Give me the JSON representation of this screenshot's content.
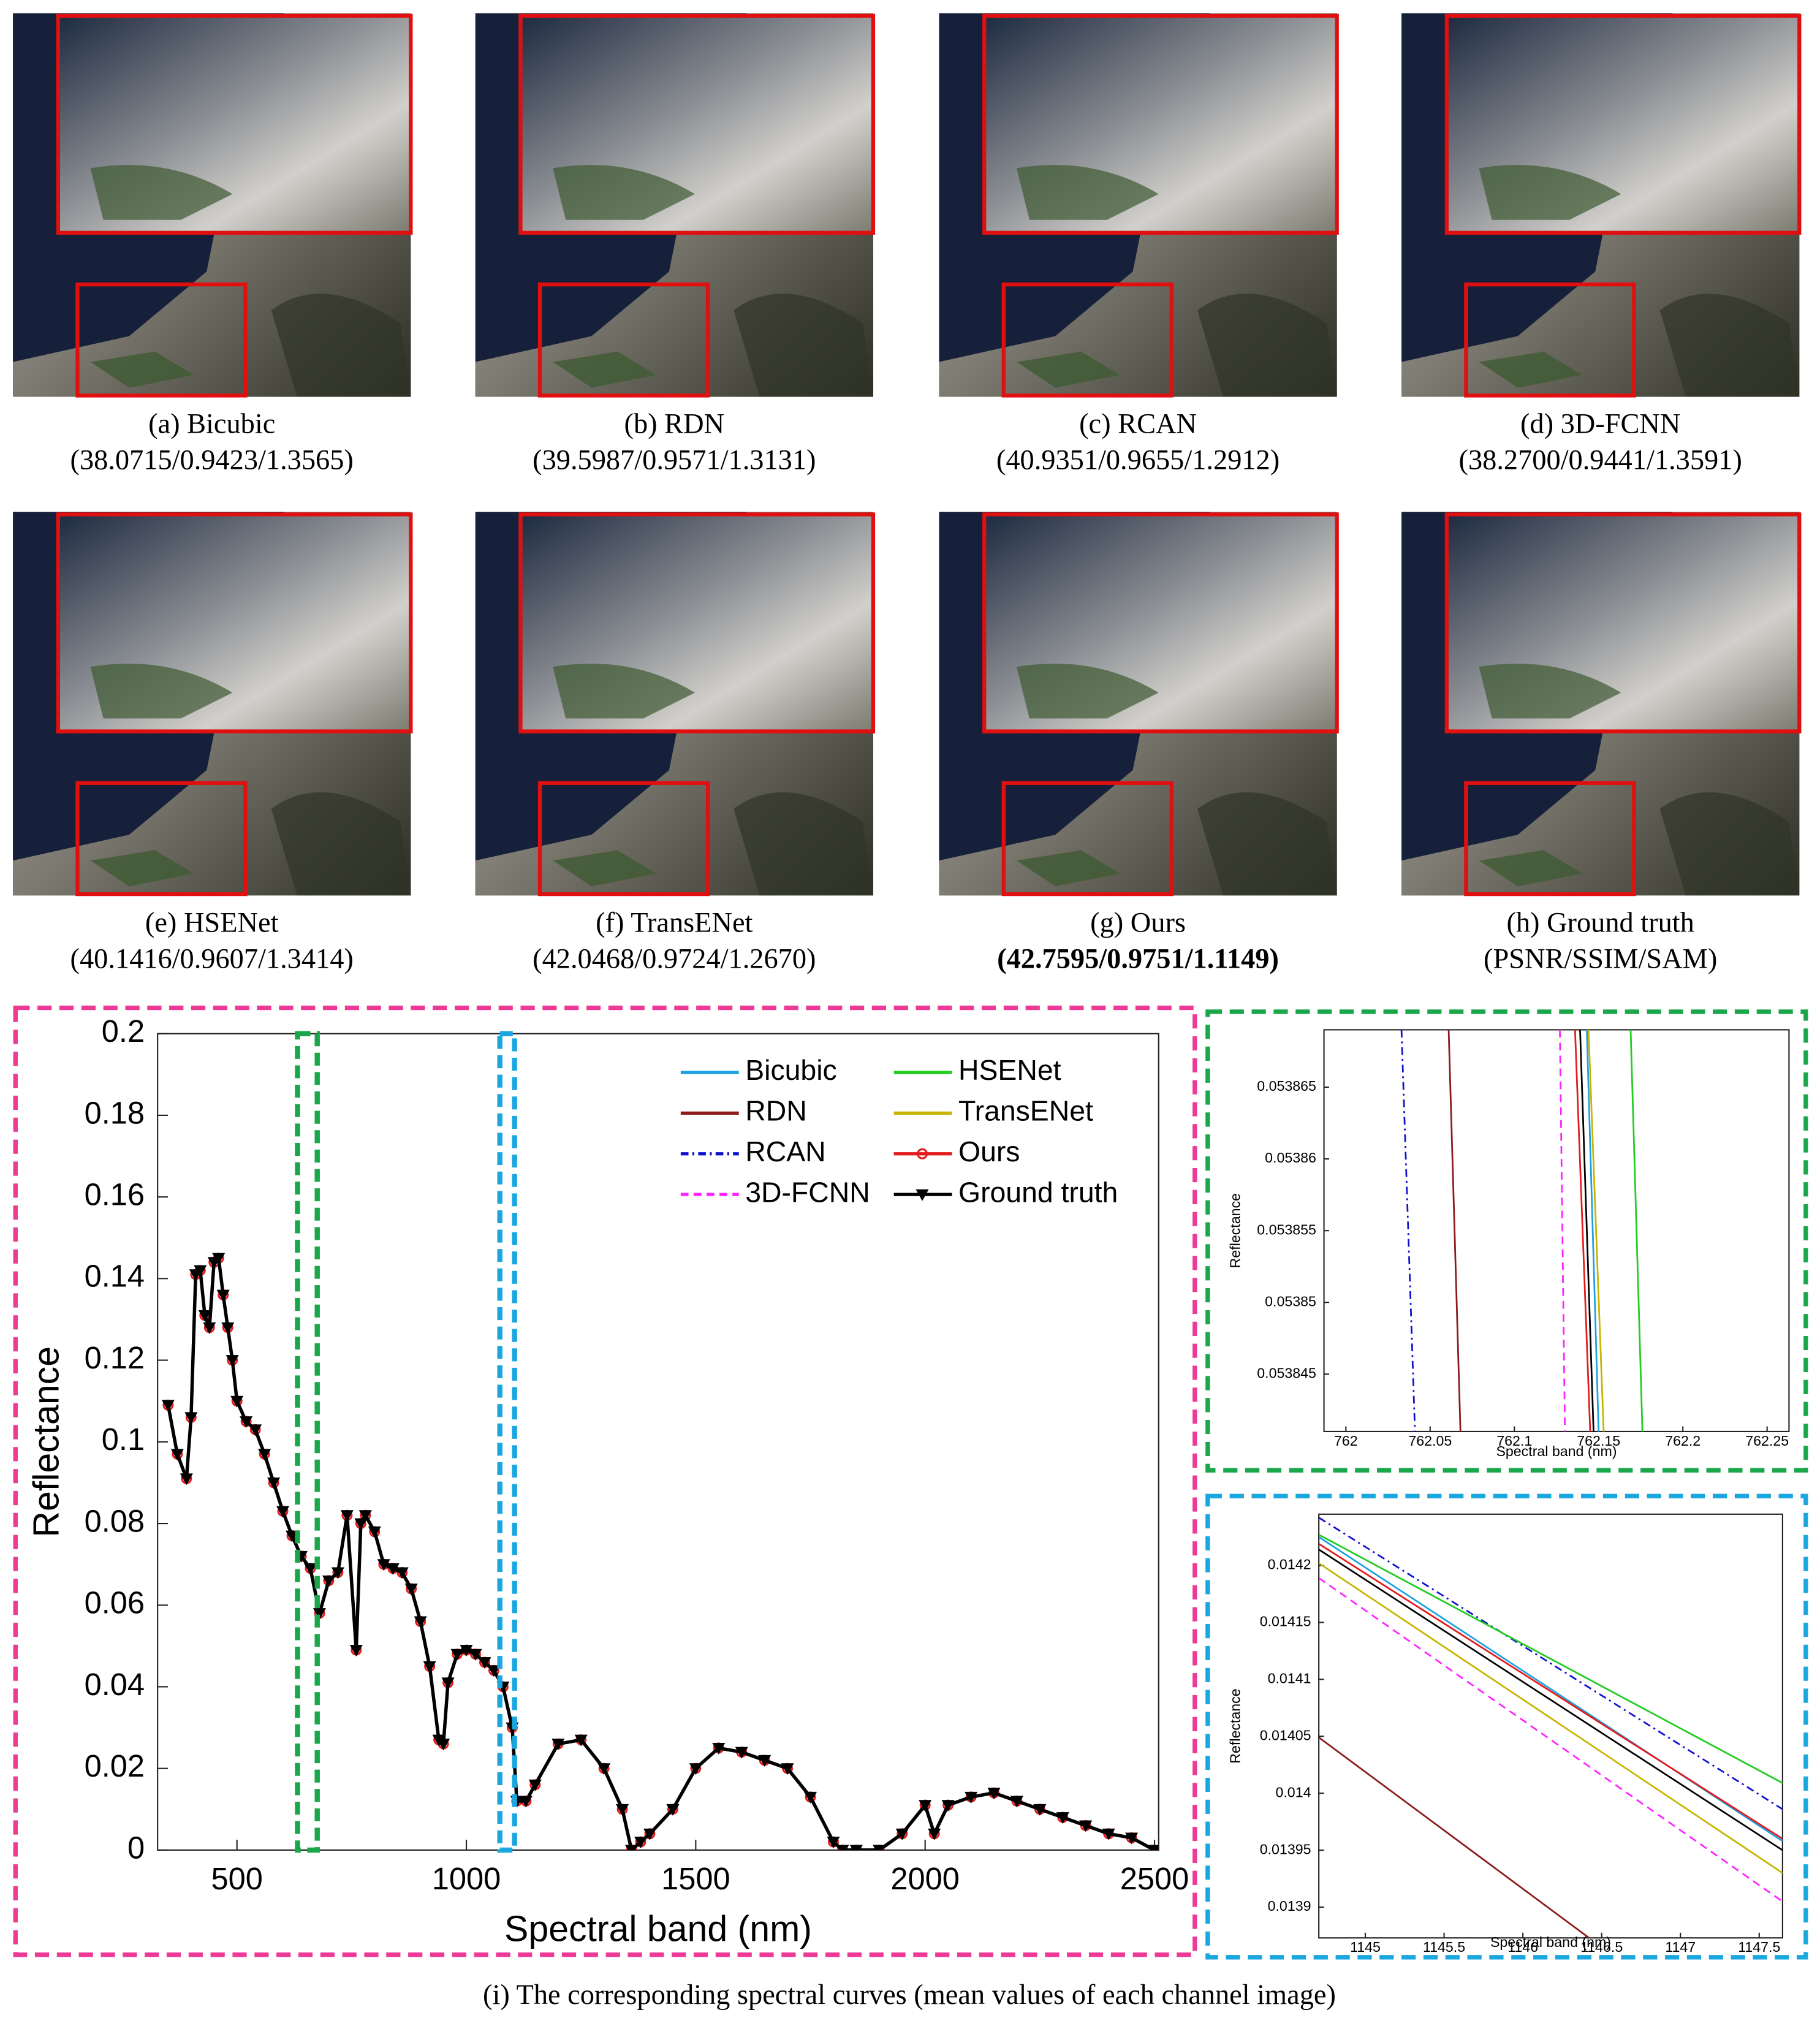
{
  "panels": [
    {
      "label": "(a) Bicubic",
      "metrics": "(38.0715/0.9423/1.3565)"
    },
    {
      "label": "(b) RDN",
      "metrics": "(39.5987/0.9571/1.3131)"
    },
    {
      "label": "(c) RCAN",
      "metrics": "(40.9351/0.9655/1.2912)"
    },
    {
      "label": "(d) 3D-FCNN",
      "metrics": "(38.2700/0.9441/1.3591)"
    },
    {
      "label": "(e) HSENet",
      "metrics": "(40.1416/0.9607/1.3414)"
    },
    {
      "label": "(f) TransENet",
      "metrics": "(42.0468/0.9724/1.2670)"
    },
    {
      "label": "(g) Ours",
      "metrics": "(42.7595/0.9751/1.1149)",
      "bold": true
    },
    {
      "label": "(h) Ground truth",
      "metrics": "(PSNR/SSIM/SAM)"
    }
  ],
  "chart_data": [
    {
      "type": "line",
      "xlabel": "Spectral band (nm)",
      "ylabel": "Reflectance",
      "legend": "upper right",
      "xlim": [
        327,
        2509
      ],
      "xticks": [
        500,
        1000,
        1500,
        2000,
        2500
      ],
      "ylim": [
        0,
        0.2
      ],
      "yticks": [
        0,
        0.02,
        0.04,
        0.06,
        0.08,
        0.1,
        0.12,
        0.14,
        0.16,
        0.18,
        0.2
      ],
      "regions": [
        {
          "xlim": [
            632,
            675
          ],
          "color": "#1aa64a"
        },
        {
          "xlim": [
            1073,
            1105
          ],
          "color": "#1aa7e0"
        }
      ],
      "x": [
        350,
        370,
        390,
        400,
        410,
        420,
        430,
        440,
        450,
        460,
        470,
        480,
        490,
        500,
        520,
        540,
        560,
        580,
        600,
        620,
        640,
        660,
        680,
        700,
        720,
        740,
        760,
        770,
        780,
        800,
        820,
        840,
        860,
        880,
        900,
        920,
        940,
        950,
        960,
        980,
        1000,
        1020,
        1040,
        1060,
        1080,
        1100,
        1110,
        1130,
        1150,
        1200,
        1250,
        1300,
        1340,
        1360,
        1380,
        1400,
        1450,
        1500,
        1550,
        1600,
        1650,
        1700,
        1750,
        1800,
        1820,
        1850,
        1900,
        1950,
        2000,
        2020,
        2050,
        2100,
        2150,
        2200,
        2250,
        2300,
        2350,
        2400,
        2450,
        2500
      ],
      "series": [
        {
          "name": "Bicubic",
          "color": "#1ba1e2",
          "values": [
            0.109,
            0.097,
            0.091,
            0.106,
            0.141,
            0.142,
            0.131,
            0.128,
            0.144,
            0.145,
            0.136,
            0.128,
            0.12,
            0.11,
            0.105,
            0.103,
            0.097,
            0.09,
            0.083,
            0.077,
            0.072,
            0.069,
            0.058,
            0.066,
            0.068,
            0.082,
            0.049,
            0.08,
            0.082,
            0.078,
            0.07,
            0.069,
            0.068,
            0.064,
            0.056,
            0.045,
            0.027,
            0.026,
            0.041,
            0.048,
            0.049,
            0.048,
            0.046,
            0.044,
            0.04,
            0.03,
            0.012,
            0.012,
            0.016,
            0.026,
            0.027,
            0.02,
            0.01,
            0,
            0.002,
            0.004,
            0.01,
            0.02,
            0.025,
            0.024,
            0.022,
            0.02,
            0.013,
            0.002,
            0,
            0,
            0,
            0.004,
            0.011,
            0.004,
            0.011,
            0.013,
            0.014,
            0.012,
            0.01,
            0.008,
            0.006,
            0.004,
            0.003,
            0
          ]
        },
        {
          "name": "RDN",
          "color": "#8b1a1a",
          "values": [
            0.109,
            0.097,
            0.091,
            0.106,
            0.141,
            0.142,
            0.131,
            0.128,
            0.144,
            0.145,
            0.136,
            0.128,
            0.12,
            0.11,
            0.105,
            0.103,
            0.097,
            0.09,
            0.083,
            0.077,
            0.072,
            0.069,
            0.058,
            0.066,
            0.068,
            0.082,
            0.049,
            0.08,
            0.082,
            0.078,
            0.07,
            0.069,
            0.068,
            0.064,
            0.056,
            0.045,
            0.027,
            0.026,
            0.041,
            0.048,
            0.049,
            0.048,
            0.046,
            0.044,
            0.04,
            0.03,
            0.012,
            0.012,
            0.016,
            0.026,
            0.027,
            0.02,
            0.01,
            0,
            0.002,
            0.004,
            0.01,
            0.02,
            0.025,
            0.024,
            0.022,
            0.02,
            0.013,
            0.002,
            0,
            0,
            0,
            0.004,
            0.011,
            0.004,
            0.011,
            0.013,
            0.014,
            0.012,
            0.01,
            0.008,
            0.006,
            0.004,
            0.003,
            0
          ]
        },
        {
          "name": "RCAN",
          "color": "#1010d0",
          "line_style": "dashdot",
          "values": [
            0.109,
            0.097,
            0.091,
            0.106,
            0.141,
            0.142,
            0.131,
            0.128,
            0.144,
            0.145,
            0.136,
            0.128,
            0.12,
            0.11,
            0.105,
            0.103,
            0.097,
            0.09,
            0.083,
            0.077,
            0.072,
            0.069,
            0.058,
            0.066,
            0.068,
            0.082,
            0.049,
            0.08,
            0.082,
            0.078,
            0.07,
            0.069,
            0.068,
            0.064,
            0.056,
            0.045,
            0.027,
            0.026,
            0.041,
            0.048,
            0.049,
            0.048,
            0.046,
            0.044,
            0.04,
            0.03,
            0.012,
            0.012,
            0.016,
            0.026,
            0.027,
            0.02,
            0.01,
            0,
            0.002,
            0.004,
            0.01,
            0.02,
            0.025,
            0.024,
            0.022,
            0.02,
            0.013,
            0.002,
            0,
            0,
            0,
            0.004,
            0.011,
            0.004,
            0.011,
            0.013,
            0.014,
            0.012,
            0.01,
            0.008,
            0.006,
            0.004,
            0.003,
            0
          ]
        },
        {
          "name": "3D-FCNN",
          "color": "#ff22ff",
          "line_style": "dashed",
          "values": [
            0.109,
            0.097,
            0.091,
            0.106,
            0.141,
            0.142,
            0.131,
            0.128,
            0.144,
            0.145,
            0.136,
            0.128,
            0.12,
            0.11,
            0.105,
            0.103,
            0.097,
            0.09,
            0.083,
            0.077,
            0.072,
            0.069,
            0.058,
            0.066,
            0.068,
            0.082,
            0.049,
            0.08,
            0.082,
            0.078,
            0.07,
            0.069,
            0.068,
            0.064,
            0.056,
            0.045,
            0.027,
            0.026,
            0.041,
            0.048,
            0.049,
            0.048,
            0.046,
            0.044,
            0.04,
            0.03,
            0.012,
            0.012,
            0.016,
            0.026,
            0.027,
            0.02,
            0.01,
            0,
            0.002,
            0.004,
            0.01,
            0.02,
            0.025,
            0.024,
            0.022,
            0.02,
            0.013,
            0.002,
            0,
            0,
            0,
            0.004,
            0.011,
            0.004,
            0.011,
            0.013,
            0.014,
            0.012,
            0.01,
            0.008,
            0.006,
            0.004,
            0.003,
            0
          ]
        },
        {
          "name": "HSENet",
          "color": "#22cc22",
          "values": [
            0.109,
            0.097,
            0.091,
            0.106,
            0.141,
            0.142,
            0.131,
            0.128,
            0.144,
            0.145,
            0.136,
            0.128,
            0.12,
            0.11,
            0.105,
            0.103,
            0.097,
            0.09,
            0.083,
            0.077,
            0.072,
            0.069,
            0.058,
            0.066,
            0.068,
            0.082,
            0.049,
            0.08,
            0.082,
            0.078,
            0.07,
            0.069,
            0.068,
            0.064,
            0.056,
            0.045,
            0.027,
            0.026,
            0.041,
            0.048,
            0.049,
            0.048,
            0.046,
            0.044,
            0.04,
            0.03,
            0.012,
            0.012,
            0.016,
            0.026,
            0.027,
            0.02,
            0.01,
            0,
            0.002,
            0.004,
            0.01,
            0.02,
            0.025,
            0.024,
            0.022,
            0.02,
            0.013,
            0.002,
            0,
            0,
            0,
            0.004,
            0.011,
            0.004,
            0.011,
            0.013,
            0.014,
            0.012,
            0.01,
            0.008,
            0.006,
            0.004,
            0.003,
            0
          ]
        },
        {
          "name": "TransENet",
          "color": "#c8b400",
          "values": [
            0.109,
            0.097,
            0.091,
            0.106,
            0.141,
            0.142,
            0.131,
            0.128,
            0.144,
            0.145,
            0.136,
            0.128,
            0.12,
            0.11,
            0.105,
            0.103,
            0.097,
            0.09,
            0.083,
            0.077,
            0.072,
            0.069,
            0.058,
            0.066,
            0.068,
            0.082,
            0.049,
            0.08,
            0.082,
            0.078,
            0.07,
            0.069,
            0.068,
            0.064,
            0.056,
            0.045,
            0.027,
            0.026,
            0.041,
            0.048,
            0.049,
            0.048,
            0.046,
            0.044,
            0.04,
            0.03,
            0.012,
            0.012,
            0.016,
            0.026,
            0.027,
            0.02,
            0.01,
            0,
            0.002,
            0.004,
            0.01,
            0.02,
            0.025,
            0.024,
            0.022,
            0.02,
            0.013,
            0.002,
            0,
            0,
            0,
            0.004,
            0.011,
            0.004,
            0.011,
            0.013,
            0.014,
            0.012,
            0.01,
            0.008,
            0.006,
            0.004,
            0.003,
            0
          ]
        },
        {
          "name": "Ours",
          "color": "#e41a1c",
          "marker": "circle",
          "values": [
            0.109,
            0.097,
            0.091,
            0.106,
            0.141,
            0.142,
            0.131,
            0.128,
            0.144,
            0.145,
            0.136,
            0.128,
            0.12,
            0.11,
            0.105,
            0.103,
            0.097,
            0.09,
            0.083,
            0.077,
            0.072,
            0.069,
            0.058,
            0.066,
            0.068,
            0.082,
            0.049,
            0.08,
            0.082,
            0.078,
            0.07,
            0.069,
            0.068,
            0.064,
            0.056,
            0.045,
            0.027,
            0.026,
            0.041,
            0.048,
            0.049,
            0.048,
            0.046,
            0.044,
            0.04,
            0.03,
            0.012,
            0.012,
            0.016,
            0.026,
            0.027,
            0.02,
            0.01,
            0,
            0.002,
            0.004,
            0.01,
            0.02,
            0.025,
            0.024,
            0.022,
            0.02,
            0.013,
            0.002,
            0,
            0,
            0,
            0.004,
            0.011,
            0.004,
            0.011,
            0.013,
            0.014,
            0.012,
            0.01,
            0.008,
            0.006,
            0.004,
            0.003,
            0
          ]
        },
        {
          "name": "Ground truth",
          "color": "#000000",
          "marker": "triangle-down",
          "values": [
            0.109,
            0.097,
            0.091,
            0.106,
            0.141,
            0.142,
            0.131,
            0.128,
            0.144,
            0.145,
            0.136,
            0.128,
            0.12,
            0.11,
            0.105,
            0.103,
            0.097,
            0.09,
            0.083,
            0.077,
            0.072,
            0.069,
            0.058,
            0.066,
            0.068,
            0.082,
            0.049,
            0.08,
            0.082,
            0.078,
            0.07,
            0.069,
            0.068,
            0.064,
            0.056,
            0.045,
            0.027,
            0.026,
            0.041,
            0.048,
            0.049,
            0.048,
            0.046,
            0.044,
            0.04,
            0.03,
            0.012,
            0.012,
            0.016,
            0.026,
            0.027,
            0.02,
            0.01,
            0,
            0.002,
            0.004,
            0.01,
            0.02,
            0.025,
            0.024,
            0.022,
            0.02,
            0.013,
            0.002,
            0,
            0,
            0,
            0.004,
            0.011,
            0.004,
            0.011,
            0.013,
            0.014,
            0.012,
            0.01,
            0.008,
            0.006,
            0.004,
            0.003,
            0
          ]
        }
      ]
    },
    {
      "type": "line",
      "xlabel": "Spectral band (nm)",
      "ylabel": "Reflectance",
      "xlim": [
        761.987,
        762.263
      ],
      "xticks": [
        762,
        762.05,
        762.1,
        762.15,
        762.2,
        762.25
      ],
      "ylim": [
        0.053841,
        0.053869
      ],
      "yticks": [
        0.053845,
        0.05385,
        0.053855,
        0.05386,
        0.053865
      ],
      "series": [
        {
          "color": "#1ba1e2",
          "x": [
            762.143,
            762.15
          ],
          "values": [
            0.053869,
            0.053841
          ]
        },
        {
          "color": "#8b1a1a",
          "x": [
            762.061,
            762.068
          ],
          "values": [
            0.053869,
            0.053841
          ]
        },
        {
          "color": "#1010d0",
          "line_style": "dashdot",
          "x": [
            762.033,
            762.041
          ],
          "values": [
            0.053869,
            0.053841
          ]
        },
        {
          "color": "#ff22ff",
          "line_style": "dashed",
          "x": [
            762.127,
            762.13
          ],
          "values": [
            0.053869,
            0.053841
          ]
        },
        {
          "color": "#22cc22",
          "x": [
            762.169,
            762.176
          ],
          "values": [
            0.053869,
            0.053841
          ]
        },
        {
          "color": "#c8b400",
          "x": [
            762.144,
            762.153
          ],
          "values": [
            0.053869,
            0.053841
          ]
        },
        {
          "color": "#e41a1c",
          "x": [
            762.136,
            762.145
          ],
          "values": [
            0.053869,
            0.053841
          ]
        },
        {
          "color": "#000000",
          "x": [
            762.139,
            762.147
          ],
          "values": [
            0.053869,
            0.053841
          ]
        }
      ]
    },
    {
      "type": "line",
      "xlabel": "Spectral band (nm)",
      "ylabel": "Reflectance",
      "xlim": [
        1144.705,
        1147.648
      ],
      "xticks": [
        1145,
        1145.5,
        1146,
        1146.5,
        1147,
        1147.5
      ],
      "ylim": [
        0.013873,
        0.014245
      ],
      "yticks": [
        0.0139,
        0.01395,
        0.014,
        0.01405,
        0.0141,
        0.01415,
        0.0142
      ],
      "series": [
        {
          "color": "#1ba1e2",
          "x": [
            1144.705,
            1147.648
          ],
          "values": [
            0.014225,
            0.013958
          ]
        },
        {
          "color": "#8b1a1a",
          "x": [
            1144.705,
            1146.42
          ],
          "values": [
            0.014049,
            0.013873
          ]
        },
        {
          "color": "#1010d0",
          "line_style": "dashdot",
          "x": [
            1144.705,
            1147.648
          ],
          "values": [
            0.014242,
            0.013986
          ]
        },
        {
          "color": "#ff22ff",
          "line_style": "dashed",
          "x": [
            1144.705,
            1147.648
          ],
          "values": [
            0.014189,
            0.013905
          ]
        },
        {
          "color": "#22cc22",
          "x": [
            1144.705,
            1147.648
          ],
          "values": [
            0.014227,
            0.014009
          ]
        },
        {
          "color": "#c8b400",
          "x": [
            1144.705,
            1147.648
          ],
          "values": [
            0.014202,
            0.01393
          ]
        },
        {
          "color": "#e41a1c",
          "x": [
            1144.705,
            1147.648
          ],
          "values": [
            0.014219,
            0.01396
          ]
        },
        {
          "color": "#000000",
          "x": [
            1144.705,
            1147.648
          ],
          "values": [
            0.014214,
            0.01395
          ]
        }
      ]
    }
  ],
  "caption": "(i) The corresponding spectral curves (mean values of each channel image)"
}
